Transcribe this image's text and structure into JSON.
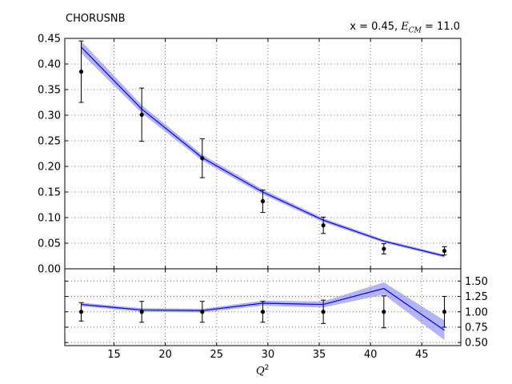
{
  "chart_data": {
    "type": "line",
    "title_left": "CHORUSNB",
    "title_right_prefix": "x = 0.45, ",
    "title_right_var": "E",
    "title_right_sub": "CM",
    "title_right_suffix": " = 11.0",
    "xlabel_var": "Q",
    "xlabel_sup": "2",
    "grid": true,
    "x_ticks": [
      15,
      20,
      25,
      30,
      35,
      40,
      45
    ],
    "xlim": [
      10.2,
      48.8
    ],
    "top": {
      "ylim": [
        0.0,
        0.45
      ],
      "y_ticks": [
        0.0,
        0.05,
        0.1,
        0.15,
        0.2,
        0.25,
        0.3,
        0.35,
        0.4,
        0.45
      ],
      "data": [
        {
          "x": 11.8,
          "y": 0.385,
          "err": 0.06
        },
        {
          "x": 17.7,
          "y": 0.301,
          "err": 0.052
        },
        {
          "x": 23.6,
          "y": 0.216,
          "err": 0.038
        },
        {
          "x": 29.5,
          "y": 0.132,
          "err": 0.022
        },
        {
          "x": 35.4,
          "y": 0.085,
          "err": 0.016
        },
        {
          "x": 41.3,
          "y": 0.039,
          "err": 0.01
        },
        {
          "x": 47.2,
          "y": 0.035,
          "err": 0.008
        }
      ],
      "theory": {
        "x": [
          11.8,
          17.7,
          23.6,
          29.5,
          35.4,
          41.3,
          47.2
        ],
        "y": [
          0.433,
          0.312,
          0.217,
          0.15,
          0.095,
          0.054,
          0.025
        ],
        "band": [
          0.012,
          0.008,
          0.006,
          0.005,
          0.004,
          0.003,
          0.003
        ]
      }
    },
    "bottom": {
      "ylim": [
        0.45,
        1.7
      ],
      "y_ticks": [
        0.5,
        0.75,
        1.0,
        1.25,
        1.5
      ],
      "y_tick_labels": [
        "0.50",
        "0.75",
        "1.00",
        "1.25",
        "1.50"
      ],
      "data": [
        {
          "x": 11.8,
          "y": 1.0,
          "err": 0.15
        },
        {
          "x": 17.7,
          "y": 1.0,
          "err": 0.17
        },
        {
          "x": 23.6,
          "y": 1.0,
          "err": 0.17
        },
        {
          "x": 29.5,
          "y": 1.0,
          "err": 0.17
        },
        {
          "x": 35.4,
          "y": 1.0,
          "err": 0.19
        },
        {
          "x": 41.3,
          "y": 1.0,
          "err": 0.26
        },
        {
          "x": 47.2,
          "y": 1.0,
          "err": 0.25
        }
      ],
      "theory": {
        "x": [
          11.8,
          17.7,
          23.6,
          29.5,
          35.4,
          41.3,
          47.2
        ],
        "y": [
          1.12,
          1.03,
          1.02,
          1.14,
          1.12,
          1.38,
          0.7
        ],
        "band": [
          0.03,
          0.03,
          0.03,
          0.04,
          0.05,
          0.1,
          0.16
        ]
      }
    },
    "colors": {
      "theory_line": "#0000ff",
      "theory_band": "#8c8cf2",
      "data": "#000000",
      "grid": "#555555"
    }
  }
}
